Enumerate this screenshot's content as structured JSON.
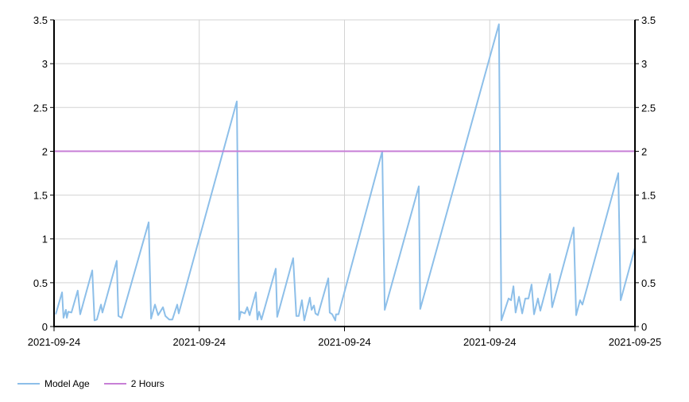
{
  "chart_data": {
    "type": "line",
    "title": "",
    "xlabel": "",
    "ylabel": "",
    "x_unit": "hours since 2021-09-24 00:00",
    "xlim": [
      0,
      24
    ],
    "ylim": [
      0,
      3.5
    ],
    "grid": true,
    "legend_position": "bottom-left",
    "x_ticks": [
      {
        "value": 0,
        "label": "2021-09-24"
      },
      {
        "value": 6,
        "label": "2021-09-24"
      },
      {
        "value": 12,
        "label": "2021-09-24"
      },
      {
        "value": 18,
        "label": "2021-09-24"
      },
      {
        "value": 24,
        "label": "2021-09-25"
      }
    ],
    "y_ticks": [
      {
        "value": 0,
        "label": "0"
      },
      {
        "value": 0.5,
        "label": "0.5"
      },
      {
        "value": 1,
        "label": "1"
      },
      {
        "value": 1.5,
        "label": "1.5"
      },
      {
        "value": 2,
        "label": "2"
      },
      {
        "value": 2.5,
        "label": "2.5"
      },
      {
        "value": 3,
        "label": "3"
      },
      {
        "value": 3.5,
        "label": "3.5"
      }
    ],
    "series": [
      {
        "name": "Model Age",
        "color": "#8dbfe9",
        "points": [
          [
            0.07,
            0.14
          ],
          [
            0.33,
            0.39
          ],
          [
            0.39,
            0.1
          ],
          [
            0.49,
            0.19
          ],
          [
            0.53,
            0.1
          ],
          [
            0.59,
            0.17
          ],
          [
            0.72,
            0.16
          ],
          [
            0.98,
            0.41
          ],
          [
            1.08,
            0.14
          ],
          [
            1.58,
            0.64
          ],
          [
            1.67,
            0.07
          ],
          [
            1.77,
            0.08
          ],
          [
            1.94,
            0.25
          ],
          [
            2.0,
            0.16
          ],
          [
            2.59,
            0.75
          ],
          [
            2.66,
            0.12
          ],
          [
            2.79,
            0.1
          ],
          [
            3.91,
            1.19
          ],
          [
            4.01,
            0.09
          ],
          [
            4.17,
            0.25
          ],
          [
            4.3,
            0.13
          ],
          [
            4.5,
            0.22
          ],
          [
            4.6,
            0.12
          ],
          [
            4.76,
            0.08
          ],
          [
            4.89,
            0.08
          ],
          [
            5.09,
            0.25
          ],
          [
            5.15,
            0.15
          ],
          [
            7.55,
            2.57
          ],
          [
            7.65,
            0.08
          ],
          [
            7.72,
            0.17
          ],
          [
            7.88,
            0.15
          ],
          [
            7.98,
            0.22
          ],
          [
            8.08,
            0.13
          ],
          [
            8.34,
            0.39
          ],
          [
            8.4,
            0.08
          ],
          [
            8.47,
            0.17
          ],
          [
            8.57,
            0.08
          ],
          [
            9.16,
            0.66
          ],
          [
            9.22,
            0.11
          ],
          [
            9.88,
            0.78
          ],
          [
            10.01,
            0.12
          ],
          [
            10.11,
            0.12
          ],
          [
            10.24,
            0.3
          ],
          [
            10.34,
            0.07
          ],
          [
            10.57,
            0.33
          ],
          [
            10.64,
            0.19
          ],
          [
            10.74,
            0.24
          ],
          [
            10.8,
            0.15
          ],
          [
            10.9,
            0.13
          ],
          [
            11.33,
            0.55
          ],
          [
            11.39,
            0.16
          ],
          [
            11.49,
            0.14
          ],
          [
            11.62,
            0.07
          ],
          [
            11.65,
            0.14
          ],
          [
            11.75,
            0.14
          ],
          [
            13.56,
            2.0
          ],
          [
            13.66,
            0.19
          ],
          [
            15.07,
            1.6
          ],
          [
            15.13,
            0.2
          ],
          [
            18.38,
            3.45
          ],
          [
            18.48,
            0.07
          ],
          [
            18.78,
            0.32
          ],
          [
            18.88,
            0.3
          ],
          [
            18.98,
            0.46
          ],
          [
            19.07,
            0.16
          ],
          [
            19.21,
            0.34
          ],
          [
            19.34,
            0.15
          ],
          [
            19.47,
            0.32
          ],
          [
            19.6,
            0.32
          ],
          [
            19.73,
            0.48
          ],
          [
            19.83,
            0.14
          ],
          [
            19.99,
            0.32
          ],
          [
            20.09,
            0.18
          ],
          [
            20.49,
            0.6
          ],
          [
            20.58,
            0.22
          ],
          [
            21.47,
            1.13
          ],
          [
            21.57,
            0.13
          ],
          [
            21.73,
            0.3
          ],
          [
            21.83,
            0.25
          ],
          [
            23.31,
            1.75
          ],
          [
            23.41,
            0.3
          ],
          [
            24.0,
            0.9
          ]
        ]
      },
      {
        "name": "2 Hours",
        "color": "#c77fd6",
        "points": [
          [
            0,
            2
          ],
          [
            24,
            2
          ]
        ]
      }
    ]
  }
}
